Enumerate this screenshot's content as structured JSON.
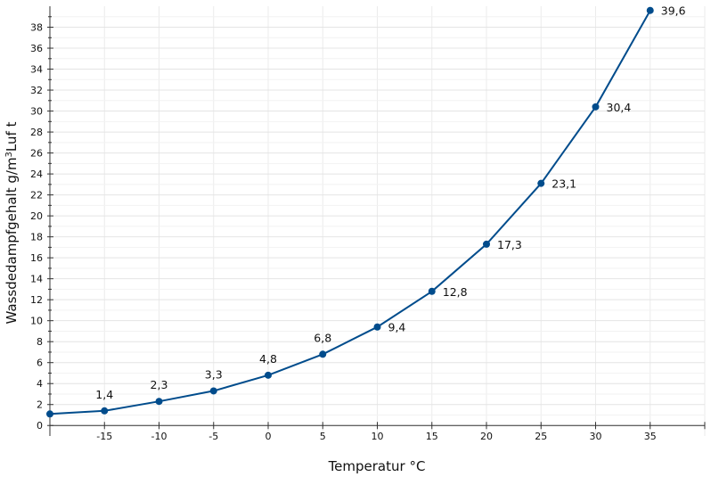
{
  "chart_data": {
    "type": "line",
    "title": "",
    "xlabel": "Temperatur °C",
    "ylabel_main": "Wassdedampfgehalt g/m",
    "ylabel_sup": "3",
    "ylabel_tail": "Luf t",
    "x": [
      -20,
      -15,
      -10,
      -5,
      0,
      5,
      10,
      15,
      20,
      25,
      30,
      35
    ],
    "y": [
      1.1,
      1.4,
      2.3,
      3.3,
      4.8,
      6.8,
      9.4,
      12.8,
      17.3,
      23.1,
      30.4,
      39.6
    ],
    "data_labels": [
      "",
      "1,4",
      "2,3",
      "3,3",
      "4,8",
      "6,8",
      "9,4",
      "12,8",
      "17,3",
      "23,1",
      "30,4",
      "39,6"
    ],
    "xticks": [
      -15,
      -10,
      -5,
      0,
      5,
      10,
      15,
      20,
      25,
      30,
      35
    ],
    "xtick_labels": [
      "-15",
      "-10",
      "-5",
      "0",
      "5",
      "10",
      "15",
      "20",
      "25",
      "30",
      "35"
    ],
    "yticks": [
      0,
      2,
      4,
      6,
      8,
      10,
      12,
      14,
      16,
      18,
      20,
      22,
      24,
      26,
      28,
      30,
      32,
      34,
      36,
      38
    ],
    "ytick_labels": [
      "0",
      "2",
      "4",
      "6",
      "8",
      "10",
      "12",
      "14",
      "16",
      "18",
      "20",
      "22",
      "24",
      "26",
      "28",
      "30",
      "32",
      "34",
      "36",
      "38"
    ],
    "xlim": [
      -20,
      40
    ],
    "ylim": [
      -1,
      40
    ],
    "grid": true,
    "line_color": "#004c8c",
    "grid_color": "#ebebeb",
    "axis_color": "#333333"
  }
}
